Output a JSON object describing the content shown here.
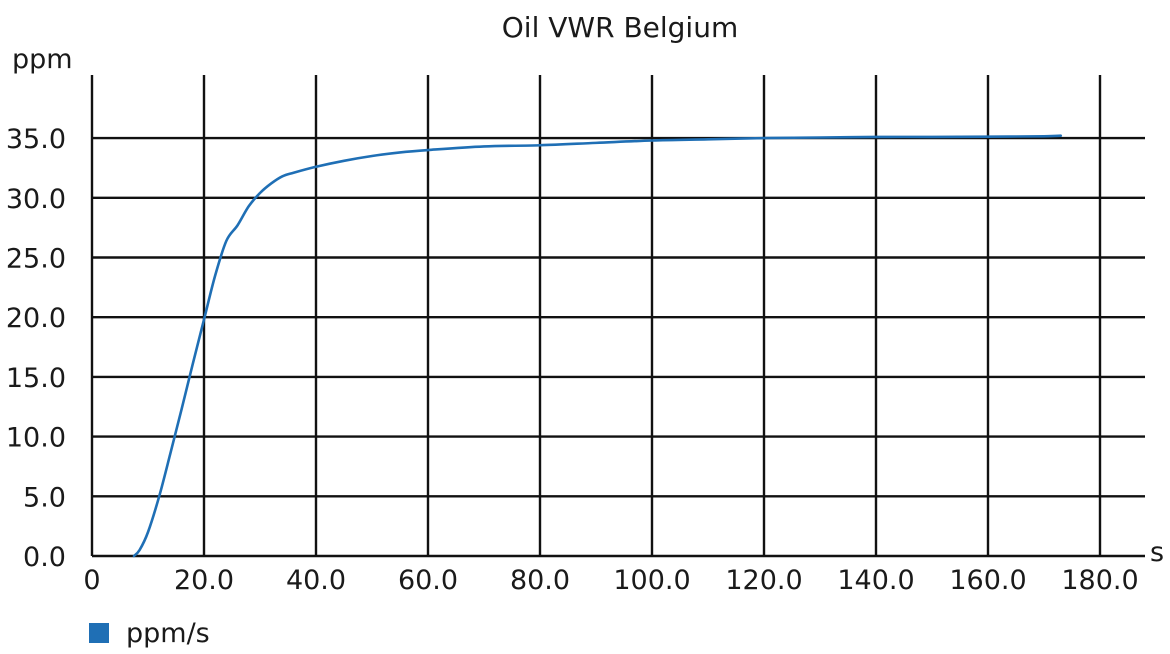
{
  "chart_data": {
    "type": "line",
    "title": "Oil VWR Belgium",
    "xlabel": "s",
    "ylabel": "ppm",
    "xlim": [
      0,
      190
    ],
    "ylim": [
      0,
      40
    ],
    "x_ticks": [
      0,
      20,
      40,
      60,
      80,
      100,
      120,
      140,
      160,
      180
    ],
    "x_tick_labels": [
      "0",
      "20.0",
      "40.0",
      "60.0",
      "80.0",
      "100.0",
      "120.0",
      "140.0",
      "160.0",
      "180.0"
    ],
    "y_ticks": [
      0,
      5,
      10,
      15,
      20,
      25,
      30,
      35
    ],
    "y_tick_labels": [
      "0.0",
      "5.0",
      "10.0",
      "15.0",
      "20.0",
      "25.0",
      "30.0",
      "35.0"
    ],
    "grid": true,
    "legend_position": "bottom-left",
    "series": [
      {
        "name": "ppm/s",
        "color": "#1f6fb5",
        "x": [
          7.5,
          8.5,
          10,
          12,
          14,
          16,
          18,
          20,
          22,
          24,
          26,
          28,
          30,
          32,
          34,
          36,
          40,
          45,
          50,
          55,
          60,
          70,
          80,
          90,
          100,
          110,
          120,
          130,
          140,
          150,
          160,
          170,
          173
        ],
        "y": [
          0,
          0.5,
          2,
          5,
          8.6,
          12.3,
          16.1,
          19.8,
          23.5,
          26.4,
          27.7,
          29.3,
          30.4,
          31.2,
          31.8,
          32.1,
          32.6,
          33.1,
          33.5,
          33.8,
          34.0,
          34.3,
          34.4,
          34.6,
          34.8,
          34.9,
          35.0,
          35.05,
          35.1,
          35.1,
          35.12,
          35.15,
          35.2
        ]
      }
    ]
  }
}
